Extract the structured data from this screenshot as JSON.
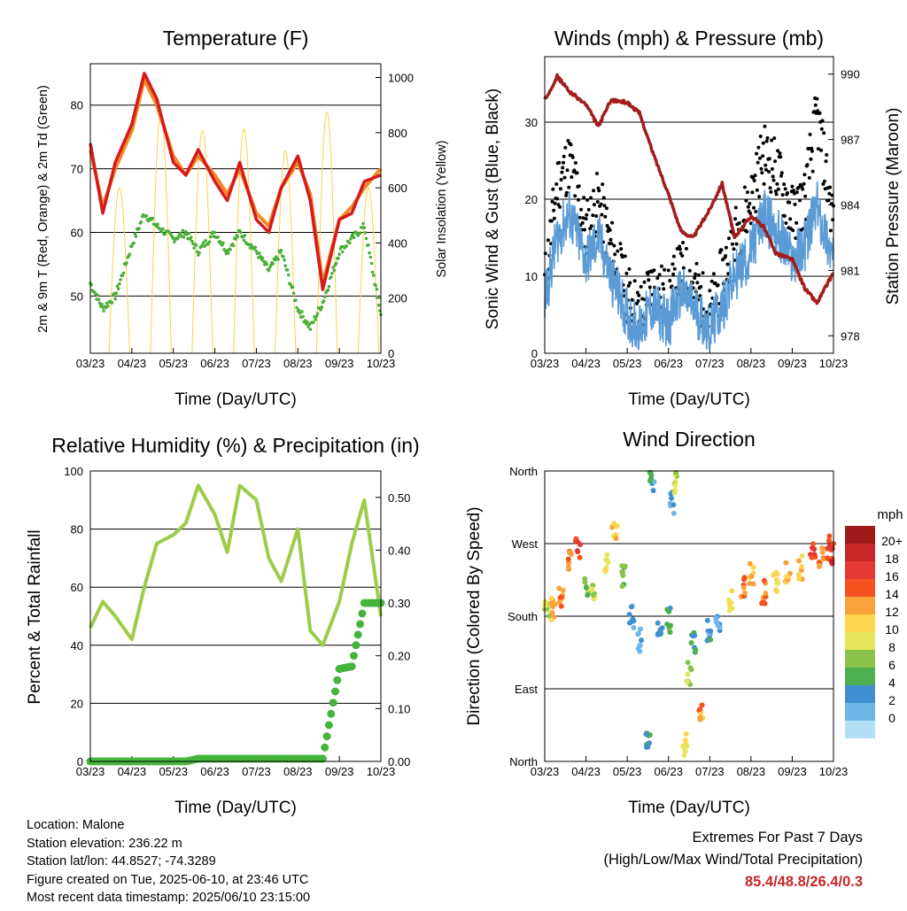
{
  "colors": {
    "temp_red": "#d7191c",
    "temp_orange": "#f08a24",
    "dewpoint_green": "#4caf3a",
    "solar_yellow": "#f7d44a",
    "wind_blue": "#5b9bd5",
    "gust_black": "#000000",
    "pressure_maroon": "#a31c1c",
    "rh_lightgreen": "#9ccc48",
    "precip_green": "#46b43c",
    "extremes_red": "#c62828"
  },
  "xaxis_ticks": [
    "03/23",
    "04/23",
    "05/23",
    "06/23",
    "07/23",
    "08/23",
    "09/23",
    "10/23"
  ],
  "xlabel": "Time (Day/UTC)",
  "panels": {
    "temperature": {
      "title": "Temperature (F)",
      "ylabel_left": "2m & 9m T (Red, Orange) & 2m Td (Green)",
      "ylabel_right": "Solar Insolation (Yellow)",
      "left_ticks": [
        "50",
        "60",
        "70",
        "80"
      ],
      "right_ticks": [
        "0",
        "200",
        "400",
        "600",
        "800",
        "1000"
      ]
    },
    "winds": {
      "title": "Winds (mph) & Pressure (mb)",
      "ylabel_left": "Sonic Wind & Gust (Blue, Black)",
      "ylabel_right": "Station Pressure (Maroon)",
      "left_ticks": [
        "0",
        "10",
        "20",
        "30"
      ],
      "right_ticks": [
        "978",
        "981",
        "984",
        "987",
        "990"
      ]
    },
    "humidity": {
      "title": "Relative Humidity (%) & Precipitation (in)",
      "ylabel_left": "Percent & Total Rainfall",
      "left_ticks": [
        "0",
        "20",
        "40",
        "60",
        "80",
        "100"
      ],
      "right_ticks": [
        "0.00",
        "0.10",
        "0.20",
        "0.30",
        "0.40",
        "0.50"
      ]
    },
    "direction": {
      "title": "Wind Direction",
      "ylabel_left": "Direction (Colored By Speed)",
      "left_ticks": [
        "North",
        "East",
        "South",
        "West",
        "North"
      ],
      "colorbar_title": "mph",
      "colorbar_labels": [
        "20+",
        "18",
        "16",
        "14",
        "12",
        "10",
        "8",
        "6",
        "4",
        "2",
        "0"
      ],
      "colorbar_colors": [
        "#9e1b1b",
        "#c62828",
        "#e53935",
        "#f4511e",
        "#f9a13a",
        "#ffd54f",
        "#e6e65a",
        "#8bc34a",
        "#4caf50",
        "#3f8fd2",
        "#6fb7e9",
        "#b3e0f7"
      ]
    }
  },
  "chart_data": [
    {
      "type": "line",
      "title": "Temperature (F)",
      "xlabel": "Time (Day/UTC)",
      "ylabel": "2m & 9m T (Red, Orange) & 2m Td (Green)",
      "ylabel_right": "Solar Insolation (Yellow)",
      "ylim": [
        41,
        86.5
      ],
      "ylim_right": [
        0,
        1050
      ],
      "x_ticks": [
        "03/23",
        "04/23",
        "05/23",
        "06/23",
        "07/23",
        "08/23",
        "09/23",
        "10/23"
      ],
      "x_days": [
        0,
        0.3,
        0.6,
        1.0,
        1.3,
        1.6,
        2.0,
        2.3,
        2.6,
        3.0,
        3.3,
        3.6,
        4.0,
        4.3,
        4.6,
        5.0,
        5.3,
        5.6,
        6.0,
        6.3,
        6.6,
        7.0
      ],
      "series": [
        {
          "name": "2m T",
          "values": [
            74,
            63,
            71,
            77,
            85,
            81,
            71,
            69,
            73,
            68,
            65,
            71,
            62,
            60,
            67,
            72,
            65,
            51,
            62,
            63,
            68,
            69
          ]
        },
        {
          "name": "9m T",
          "values": [
            73,
            64,
            70,
            76,
            84,
            80,
            72,
            69,
            72,
            69,
            66,
            70,
            63,
            61,
            67,
            71,
            66,
            52,
            62,
            64,
            67,
            70
          ]
        },
        {
          "name": "2m Td",
          "values": [
            52,
            48,
            50,
            58,
            63,
            61,
            59,
            60,
            57,
            60,
            57,
            60,
            57,
            54,
            57,
            48,
            45,
            49,
            57,
            59,
            61,
            47
          ]
        },
        {
          "name": "Solar Insolation",
          "values": [
            0,
            700,
            0,
            750,
            900,
            0,
            850,
            800,
            0,
            880,
            800,
            0,
            900,
            700,
            0,
            850,
            880,
            0,
            300,
            0,
            1000,
            300
          ]
        }
      ]
    },
    {
      "type": "line",
      "title": "Winds (mph) & Pressure (mb)",
      "xlabel": "Time (Day/UTC)",
      "ylabel": "Sonic Wind & Gust (Blue, Black)",
      "ylabel_right": "Station Pressure (Maroon)",
      "ylim": [
        0,
        38.5
      ],
      "ylim_right": [
        977.2,
        990.8
      ],
      "x_ticks": [
        "03/23",
        "04/23",
        "05/23",
        "06/23",
        "07/23",
        "08/23",
        "09/23",
        "10/23"
      ],
      "x_days": [
        0,
        0.3,
        0.6,
        1.0,
        1.3,
        1.6,
        2.0,
        2.3,
        2.6,
        3.0,
        3.3,
        3.6,
        4.0,
        4.3,
        4.6,
        5.0,
        5.3,
        5.6,
        6.0,
        6.3,
        6.6,
        7.0
      ],
      "series": [
        {
          "name": "Sonic Wind",
          "values": [
            7,
            15,
            18,
            12,
            15,
            10,
            5,
            3,
            6,
            4,
            8,
            6,
            3,
            6,
            10,
            13,
            18,
            16,
            12,
            14,
            19,
            12
          ]
        },
        {
          "name": "Gust",
          "values": [
            9,
            22,
            25,
            16,
            20,
            14,
            8,
            5,
            9,
            7,
            11,
            9,
            5,
            10,
            15,
            20,
            26,
            24,
            18,
            20,
            31,
            17
          ]
        },
        {
          "name": "Station Pressure",
          "values": [
            988.8,
            989.9,
            989.2,
            988.6,
            987.6,
            988.8,
            988.7,
            988.2,
            986.5,
            984.5,
            982.8,
            982.5,
            983.8,
            985.0,
            982.5,
            983.5,
            983.0,
            981.8,
            981.5,
            980.2,
            979.5,
            980.9
          ]
        }
      ]
    },
    {
      "type": "line",
      "title": "Relative Humidity (%) & Precipitation (in)",
      "xlabel": "Time (Day/UTC)",
      "ylabel": "Percent & Total Rainfall",
      "ylim": [
        0,
        100
      ],
      "ylim_right": [
        0,
        0.55
      ],
      "x_ticks": [
        "03/23",
        "04/23",
        "05/23",
        "06/23",
        "07/23",
        "08/23",
        "09/23",
        "10/23"
      ],
      "x_days": [
        0,
        0.3,
        0.6,
        1.0,
        1.3,
        1.6,
        2.0,
        2.3,
        2.6,
        3.0,
        3.3,
        3.6,
        4.0,
        4.3,
        4.6,
        5.0,
        5.3,
        5.6,
        6.0,
        6.3,
        6.6,
        7.0
      ],
      "series": [
        {
          "name": "Relative Humidity",
          "values": [
            46,
            55,
            50,
            42,
            60,
            75,
            78,
            82,
            95,
            85,
            72,
            95,
            90,
            70,
            62,
            80,
            45,
            40,
            55,
            75,
            90,
            50
          ]
        },
        {
          "name": "Total Rainfall",
          "values": [
            0,
            0,
            0,
            0,
            0,
            0,
            0,
            0,
            0.005,
            0.005,
            0.005,
            0.005,
            0.005,
            0.005,
            0.005,
            0.005,
            0.005,
            0.005,
            0.175,
            0.18,
            0.3,
            0.3
          ]
        }
      ]
    },
    {
      "type": "scatter",
      "title": "Wind Direction",
      "xlabel": "Time (Day/UTC)",
      "ylabel": "Direction (Colored By Speed)",
      "y_ticks": [
        "North",
        "East",
        "South",
        "West",
        "North"
      ],
      "ylim_deg": [
        0,
        360
      ],
      "colorbar": {
        "title": "mph",
        "levels": [
          0,
          2,
          4,
          6,
          8,
          10,
          12,
          14,
          16,
          18,
          20
        ]
      },
      "points": [
        {
          "day": 0.05,
          "deg": 185,
          "mph": 10
        },
        {
          "day": 0.2,
          "deg": 190,
          "mph": 14
        },
        {
          "day": 0.4,
          "deg": 200,
          "mph": 15
        },
        {
          "day": 0.6,
          "deg": 250,
          "mph": 16
        },
        {
          "day": 0.8,
          "deg": 265,
          "mph": 18
        },
        {
          "day": 1.0,
          "deg": 220,
          "mph": 9
        },
        {
          "day": 1.2,
          "deg": 210,
          "mph": 10
        },
        {
          "day": 1.5,
          "deg": 250,
          "mph": 12
        },
        {
          "day": 1.7,
          "deg": 285,
          "mph": 13
        },
        {
          "day": 1.9,
          "deg": 230,
          "mph": 8
        },
        {
          "day": 2.1,
          "deg": 180,
          "mph": 4
        },
        {
          "day": 2.3,
          "deg": 150,
          "mph": 3
        },
        {
          "day": 2.5,
          "deg": 30,
          "mph": 6
        },
        {
          "day": 2.6,
          "deg": 350,
          "mph": 5
        },
        {
          "day": 2.8,
          "deg": 160,
          "mph": 6
        },
        {
          "day": 3.0,
          "deg": 175,
          "mph": 7
        },
        {
          "day": 3.1,
          "deg": 320,
          "mph": 4
        },
        {
          "day": 3.2,
          "deg": 345,
          "mph": 10
        },
        {
          "day": 3.4,
          "deg": 20,
          "mph": 12
        },
        {
          "day": 3.5,
          "deg": 110,
          "mph": 10
        },
        {
          "day": 3.6,
          "deg": 150,
          "mph": 6
        },
        {
          "day": 3.8,
          "deg": 60,
          "mph": 15
        },
        {
          "day": 4.0,
          "deg": 160,
          "mph": 5
        },
        {
          "day": 4.2,
          "deg": 170,
          "mph": 4
        },
        {
          "day": 4.5,
          "deg": 200,
          "mph": 12
        },
        {
          "day": 4.8,
          "deg": 215,
          "mph": 17
        },
        {
          "day": 5.0,
          "deg": 230,
          "mph": 14
        },
        {
          "day": 5.3,
          "deg": 210,
          "mph": 16
        },
        {
          "day": 5.6,
          "deg": 225,
          "mph": 12
        },
        {
          "day": 5.9,
          "deg": 235,
          "mph": 14
        },
        {
          "day": 6.2,
          "deg": 240,
          "mph": 13
        },
        {
          "day": 6.5,
          "deg": 255,
          "mph": 18
        },
        {
          "day": 6.7,
          "deg": 250,
          "mph": 16
        },
        {
          "day": 6.9,
          "deg": 265,
          "mph": 17
        },
        {
          "day": 6.95,
          "deg": 258,
          "mph": 19
        }
      ]
    }
  ],
  "footer": {
    "location": "Location: Malone",
    "elevation": "Station elevation: 236.22 m",
    "latlon": "Station lat/lon: 44.8527; -74.3289",
    "created": "Figure created on Tue, 2025-06-10, at 23:46 UTC",
    "recent": "Most recent data timestamp: 2025/06/10 23:15:00",
    "extremes_title": "Extremes For Past 7 Days",
    "extremes_subtitle": "(High/Low/Max Wind/Total Precipitation)",
    "extremes_values": "85.4/48.8/26.4/0.3"
  }
}
